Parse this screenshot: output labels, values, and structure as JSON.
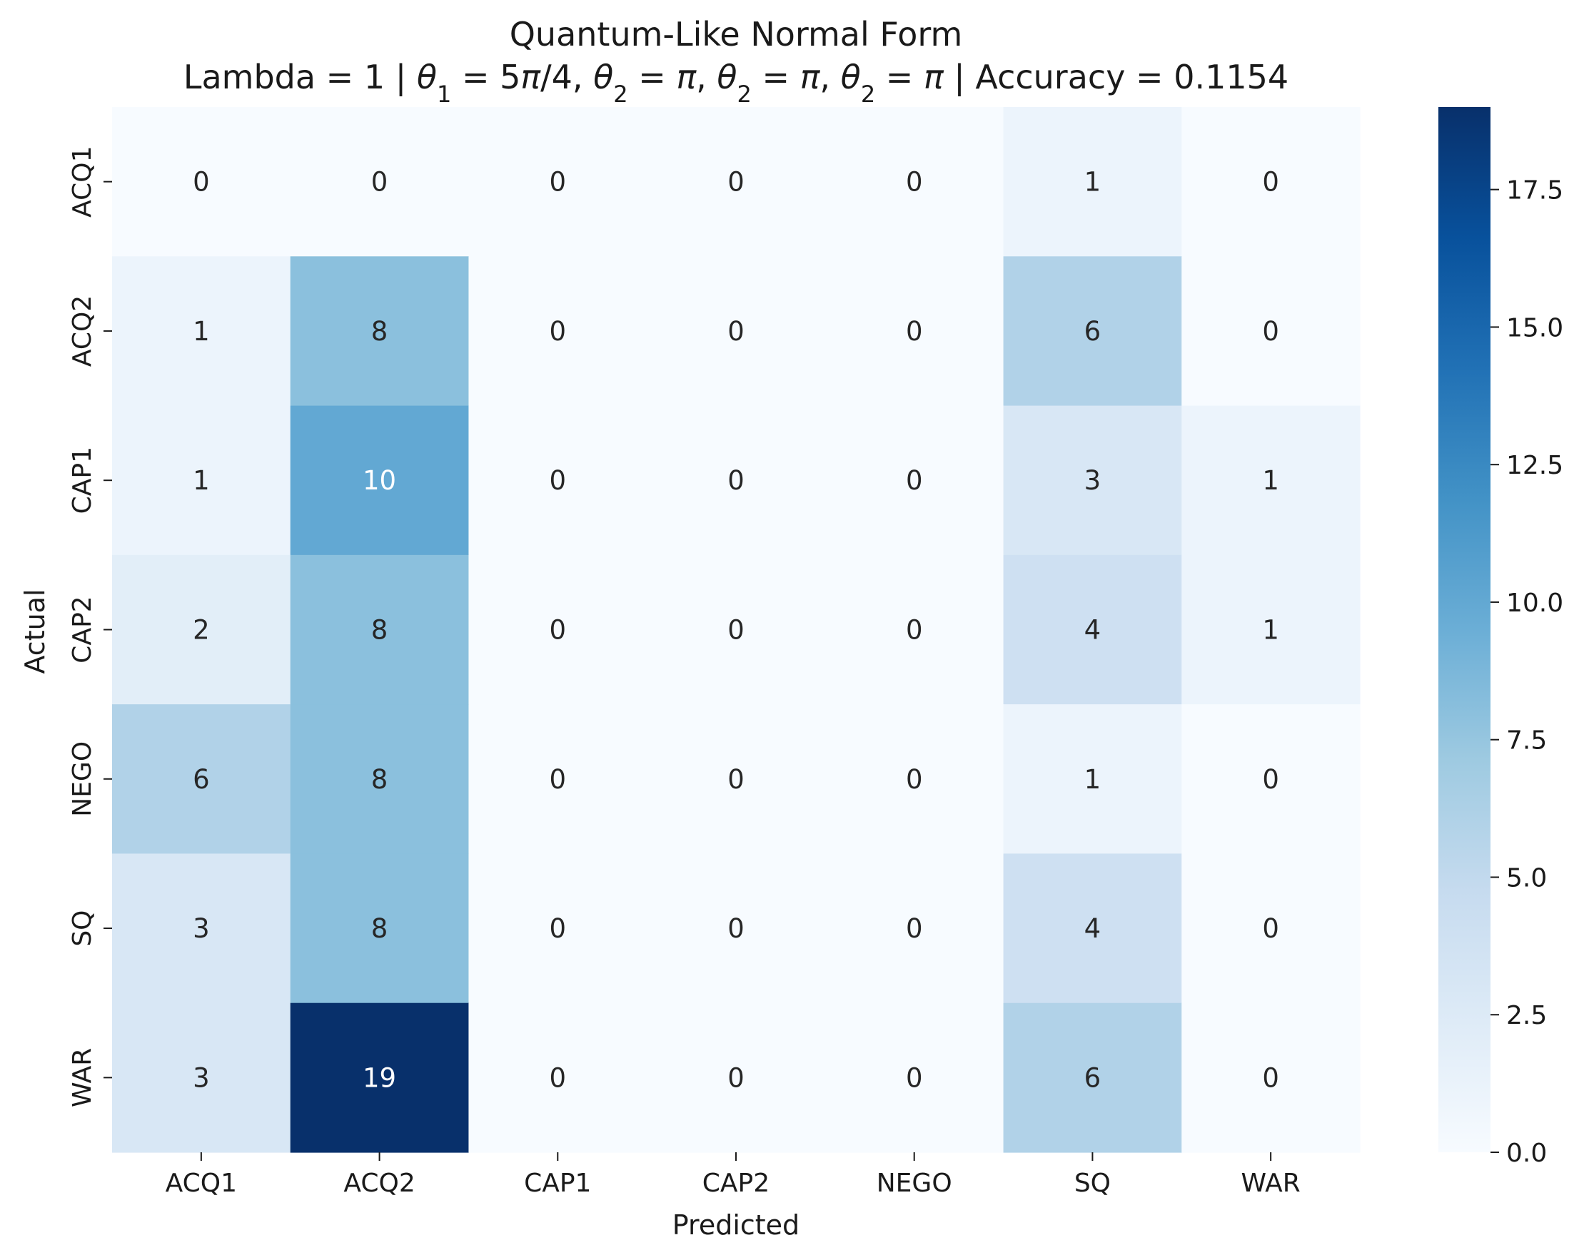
{
  "chart_data": {
    "type": "heatmap",
    "title": "Quantum-Like Normal Form",
    "subtitle_parts": {
      "lambda": "Lambda = 1 | ",
      "theta_sym": "θ",
      "sub1": "1",
      "eq1": " = 5",
      "pi1": "π",
      "frac1": "/4, ",
      "sub2": "2",
      "eq_pi": " = ",
      "pi": "π",
      "sep": ", ",
      "accuracy": " | Accuracy =  0.1154"
    },
    "xlabel": "Predicted",
    "ylabel": "Actual",
    "x_categories": [
      "ACQ1",
      "ACQ2",
      "CAP1",
      "CAP2",
      "NEGO",
      "SQ",
      "WAR"
    ],
    "y_categories": [
      "ACQ1",
      "ACQ2",
      "CAP1",
      "CAP2",
      "NEGO",
      "SQ",
      "WAR"
    ],
    "values": [
      [
        0,
        0,
        0,
        0,
        0,
        1,
        0
      ],
      [
        1,
        8,
        0,
        0,
        0,
        6,
        0
      ],
      [
        1,
        10,
        0,
        0,
        0,
        3,
        1
      ],
      [
        2,
        8,
        0,
        0,
        0,
        4,
        1
      ],
      [
        6,
        8,
        0,
        0,
        0,
        1,
        0
      ],
      [
        3,
        8,
        0,
        0,
        0,
        4,
        0
      ],
      [
        3,
        19,
        0,
        0,
        0,
        6,
        0
      ]
    ],
    "colorbar": {
      "colormap": "Blues",
      "vmin": 0,
      "vmax": 19,
      "ticks": [
        0.0,
        2.5,
        5.0,
        7.5,
        10.0,
        12.5,
        15.0,
        17.5
      ],
      "tick_labels": [
        "0.0",
        "2.5",
        "5.0",
        "7.5",
        "10.0",
        "12.5",
        "15.0",
        "17.5"
      ]
    },
    "colors": {
      "blues_stops": [
        "#f7fbff",
        "#deebf7",
        "#c6dbef",
        "#9ecae1",
        "#6baed6",
        "#4292c6",
        "#2171b5",
        "#08519c",
        "#08306b"
      ],
      "text_dark": "#262626",
      "text_light": "#ffffff"
    }
  }
}
